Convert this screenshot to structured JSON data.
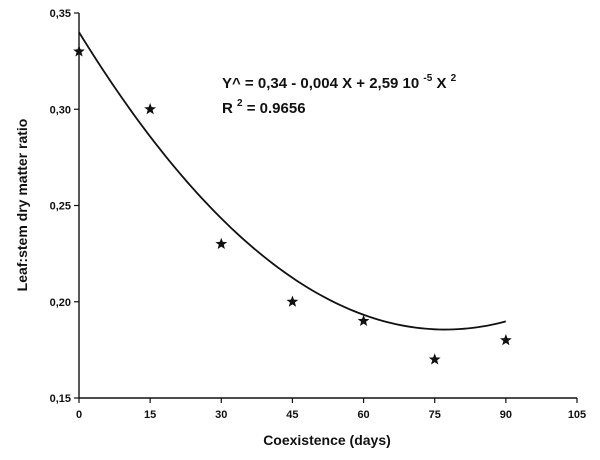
{
  "chart_data": {
    "type": "scatter",
    "xlabel": "Coexistence (days)",
    "ylabel": "Leaf:stem dry matter ratio",
    "xlim": [
      0,
      105
    ],
    "ylim": [
      0.15,
      0.35
    ],
    "x_ticks": [
      0,
      15,
      30,
      45,
      60,
      75,
      90,
      105
    ],
    "x_tick_labels": [
      "0",
      "15",
      "30",
      "45",
      "60",
      "75",
      "90",
      "105"
    ],
    "y_ticks": [
      0.15,
      0.2,
      0.25,
      0.3,
      0.35
    ],
    "y_tick_labels": [
      "0,15",
      "0,20",
      "0,25",
      "0,30",
      "0,35"
    ],
    "grid": false,
    "legend": "none",
    "series": [
      {
        "marker": "star",
        "x": [
          0,
          15,
          30,
          45,
          60,
          75,
          90
        ],
        "y": [
          0.33,
          0.3,
          0.23,
          0.2,
          0.19,
          0.17,
          0.18
        ]
      }
    ],
    "fit": {
      "type": "quadratic",
      "coefficients": [
        0.34,
        -0.004,
        2.59e-05
      ],
      "x_range": [
        0,
        90
      ]
    },
    "annotations": {
      "equation": {
        "part1": "Y^ = 0,34 - 0,004 X + 2,59 10",
        "exp1": "-5",
        "part2": " X",
        "exp2": "2"
      },
      "r2": {
        "base": "R",
        "exp": "2",
        "rest": " = 0.9656"
      }
    }
  }
}
